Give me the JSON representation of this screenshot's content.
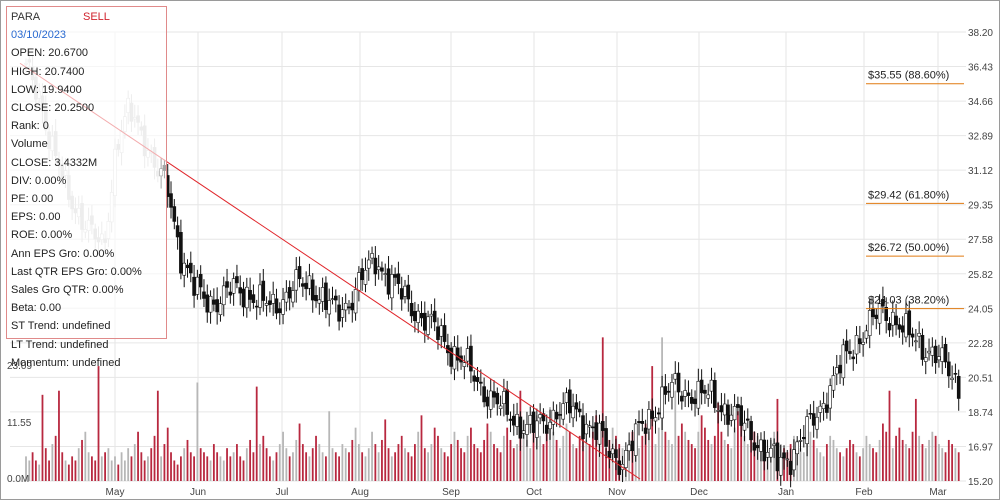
{
  "info": {
    "ticker": "PARA",
    "signal": "SELL",
    "date": "03/10/2023",
    "rows": [
      "OPEN: 20.6700",
      "HIGH: 20.7400",
      "LOW: 19.9400",
      "CLOSE: 20.2500",
      "Rank: 0",
      "Volume",
      "CLOSE: 3.4332M",
      "DIV: 0.00%",
      "PE: 0.00",
      "EPS: 0.00",
      "ROE: 0.00%",
      "Ann EPS Gro: 0.00%",
      "Last QTR EPS Gro: 0.00%",
      "Sales Gro QTR: 0.00%",
      "Beta: 0.00",
      "ST Trend: undefined",
      "LT Trend: undefined",
      "Momentum: undefined"
    ]
  },
  "colors": {
    "up": "#ffffff",
    "down": "#111111",
    "candle_outline": "#111111",
    "vol_red": "#b8283f",
    "vol_gray": "#b7b7b7",
    "trend": "#e0262b",
    "fib": "#e07a10",
    "grid": "#e6e6e6"
  },
  "chart_data": {
    "type": "candlestick",
    "ylim": [
      15.2,
      38.2
    ],
    "yticks": [
      "38.20",
      "36.43",
      "34.66",
      "32.89",
      "31.12",
      "29.35",
      "27.58",
      "25.82",
      "24.05",
      "22.28",
      "20.51",
      "18.74",
      "16.97",
      "15.20"
    ],
    "xticks": [
      "May",
      "Jun",
      "Jul",
      "Aug",
      "Sep",
      "Oct",
      "Nov",
      "Dec",
      "Jan",
      "Feb",
      "Mar"
    ],
    "volume_axis_labels": [
      "23.09",
      "11.55",
      "0.0M"
    ],
    "volume_max": 34.6,
    "trendline": {
      "start_price": 36.6,
      "start_date": "Apr 2022",
      "end_price": 15.3,
      "end_date": "Nov 2022"
    },
    "fib_levels": [
      {
        "label": "$35.55 (88.60%)",
        "price": 35.55
      },
      {
        "label": "$29.42 (61.80%)",
        "price": 29.42
      },
      {
        "label": "$26.72 (50.00%)",
        "price": 26.72
      },
      {
        "label": "$24.03 (38.20%)",
        "price": 24.03
      }
    ],
    "anchors": [
      [
        36.5,
        36.0
      ],
      [
        35.2,
        35.0
      ],
      [
        33.0,
        31.5
      ],
      [
        30.2,
        30.4
      ],
      [
        28.6,
        29.5
      ],
      [
        27.2,
        28.5
      ],
      [
        26.5,
        27.8
      ],
      [
        32.0,
        33.0
      ],
      [
        33.4,
        34.8
      ],
      [
        32.2,
        34.0
      ],
      [
        31.5,
        30.8
      ],
      [
        30.5,
        29.5
      ],
      [
        27.0,
        26.4
      ],
      [
        25.2,
        24.8
      ],
      [
        24.7,
        24.3
      ],
      [
        24.4,
        24.5
      ],
      [
        24.9,
        25.2
      ],
      [
        25.1,
        24.8
      ],
      [
        24.6,
        24.0
      ],
      [
        24.3,
        24.1
      ],
      [
        24.4,
        24.9
      ],
      [
        25.0,
        25.5
      ],
      [
        25.5,
        25.0
      ],
      [
        24.7,
        24.2
      ],
      [
        23.9,
        23.7
      ],
      [
        24.1,
        24.8
      ],
      [
        25.0,
        26.3
      ],
      [
        26.1,
        27.0
      ],
      [
        25.9,
        25.3
      ],
      [
        25.0,
        24.5
      ],
      [
        24.2,
        23.8
      ],
      [
        23.5,
        23.1
      ],
      [
        23.0,
        22.4
      ],
      [
        22.0,
        21.5
      ],
      [
        21.4,
        20.8
      ],
      [
        20.4,
        19.9
      ],
      [
        19.6,
        19.2
      ],
      [
        18.9,
        18.6
      ],
      [
        18.4,
        18.1
      ],
      [
        18.0,
        17.7
      ],
      [
        17.9,
        18.4
      ],
      [
        18.6,
        19.2
      ],
      [
        19.1,
        18.7
      ],
      [
        18.5,
        18.2
      ],
      [
        18.1,
        17.6
      ],
      [
        17.0,
        16.2
      ],
      [
        16.0,
        16.6
      ],
      [
        16.9,
        17.8
      ],
      [
        18.0,
        18.8
      ],
      [
        19.1,
        19.6
      ],
      [
        19.8,
        20.2
      ],
      [
        20.0,
        19.5
      ],
      [
        19.4,
        19.7
      ],
      [
        19.8,
        19.3
      ],
      [
        19.1,
        18.6
      ],
      [
        18.5,
        18.2
      ],
      [
        17.9,
        17.4
      ],
      [
        16.9,
        16.5
      ],
      [
        16.3,
        16.0
      ],
      [
        16.2,
        16.8
      ],
      [
        17.1,
        17.8
      ],
      [
        18.2,
        19.0
      ],
      [
        19.4,
        20.3
      ],
      [
        20.8,
        21.7
      ],
      [
        22.0,
        22.6
      ],
      [
        22.8,
        23.4
      ],
      [
        23.6,
        24.2
      ],
      [
        24.0,
        23.2
      ],
      [
        22.8,
        22.6
      ],
      [
        22.4,
        22.1
      ],
      [
        22.0,
        21.6
      ],
      [
        21.4,
        20.6
      ],
      [
        20.4,
        19.9
      ]
    ],
    "volumes": [
      6,
      5,
      7,
      5,
      4,
      6,
      8,
      5,
      9,
      11,
      6,
      7,
      5,
      4,
      6,
      5,
      8,
      10,
      12,
      7,
      6,
      5,
      9,
      6,
      7,
      8,
      5,
      6,
      4,
      7,
      5,
      8,
      6,
      9,
      12,
      7,
      5,
      6,
      8,
      11,
      7,
      6,
      9,
      13,
      7,
      5,
      4,
      6,
      8,
      10,
      7,
      6,
      5,
      8,
      7,
      6,
      5,
      9,
      7,
      6,
      5,
      8,
      6,
      7,
      9,
      6,
      5,
      8,
      10,
      7,
      6,
      9,
      11,
      8,
      6,
      5,
      7,
      9,
      12,
      8,
      6,
      7,
      10,
      14,
      9,
      7,
      6,
      8,
      11,
      9,
      7,
      6,
      5,
      8,
      7,
      6,
      9,
      8,
      7,
      10,
      13,
      9,
      7,
      6,
      8,
      12,
      9,
      7,
      10,
      15,
      8,
      6,
      7,
      9,
      11,
      8,
      7,
      6,
      9,
      12,
      10,
      8,
      7,
      9,
      13,
      11,
      8,
      7,
      6,
      9,
      12,
      10,
      8,
      7,
      11,
      13,
      9,
      8,
      7,
      10,
      14,
      12,
      9,
      8,
      7,
      11,
      13,
      10,
      8,
      9,
      12,
      15,
      10,
      8,
      12,
      16,
      11,
      9,
      13,
      18,
      12,
      10,
      8,
      11,
      14,
      12,
      9,
      8,
      11,
      13,
      10,
      9,
      12,
      16,
      11,
      9,
      8,
      10,
      13,
      11,
      9,
      8,
      7,
      10,
      12,
      9,
      8,
      11,
      14,
      12,
      10,
      9,
      13,
      35,
      12,
      10,
      9,
      8,
      11,
      14,
      12,
      10,
      9,
      8,
      12,
      16,
      13,
      10,
      9,
      11,
      14,
      12,
      10,
      9,
      8,
      13,
      17,
      14,
      11,
      9,
      10,
      12,
      11,
      9,
      8,
      7,
      10,
      12,
      11,
      9,
      8,
      7,
      9,
      11,
      10,
      8,
      7,
      9,
      12,
      10,
      8,
      7,
      6,
      9,
      11,
      10,
      8,
      7,
      6,
      8,
      10,
      9,
      7,
      6,
      8,
      11,
      9,
      8,
      7,
      10,
      14,
      12,
      9,
      8,
      11,
      13,
      10,
      9,
      8,
      12,
      15,
      11,
      9,
      8,
      10,
      12,
      11,
      9,
      8,
      7,
      10,
      9,
      8,
      7
    ],
    "volume_spikes": {
      "5": 21,
      "10": 22,
      "22": 28,
      "40": 22,
      "52": 24,
      "70": 23,
      "92": 17,
      "120": 16,
      "150": 22,
      "175": 35,
      "190": 28,
      "197": 22,
      "210": 19,
      "228": 20,
      "262": 22,
      "270": 20
    }
  }
}
